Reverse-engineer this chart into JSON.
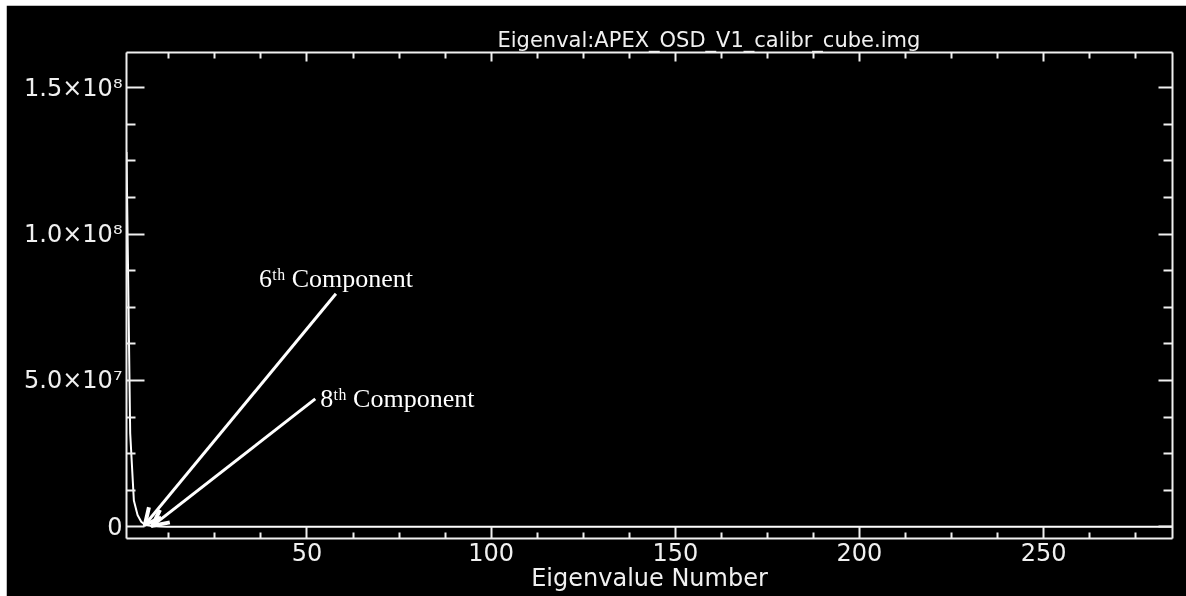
{
  "chart_data": {
    "type": "line",
    "title": "Eigenval:APEX_OSD_V1_calibr_cube.img",
    "xlabel": "Eigenvalue Number",
    "series": [
      {
        "color": "#ffffff",
        "x": [
          1,
          2,
          3,
          4,
          5,
          6,
          7,
          8,
          9,
          10,
          12,
          15,
          20,
          50,
          100,
          150,
          200,
          250,
          285
        ],
        "values": [
          128000000,
          32000000,
          9000000,
          4000000,
          1700000,
          700000,
          400000,
          300000,
          200000,
          100000,
          0,
          0,
          0,
          0,
          0,
          0,
          0,
          0,
          0
        ]
      }
    ],
    "xlim": [
      1,
      285
    ],
    "ylim": [
      -4000000,
      162000000
    ],
    "xticks": [
      {
        "value": 12.5,
        "label": null
      },
      {
        "value": 25,
        "label": null
      },
      {
        "value": 37.5,
        "label": null
      },
      50,
      {
        "value": 62.5,
        "label": null
      },
      {
        "value": 75,
        "label": null
      },
      {
        "value": 87.5,
        "label": null
      },
      100,
      {
        "value": 112.5,
        "label": null
      },
      {
        "value": 125,
        "label": null
      },
      {
        "value": 137.5,
        "label": null
      },
      150,
      {
        "value": 162.5,
        "label": null
      },
      {
        "value": 175,
        "label": null
      },
      {
        "value": 187.5,
        "label": null
      },
      200,
      {
        "value": 212.5,
        "label": null
      },
      {
        "value": 225,
        "label": null
      },
      {
        "value": 237.5,
        "label": null
      },
      250,
      {
        "value": 262.5,
        "label": null
      },
      {
        "value": 275,
        "label": null
      }
    ],
    "yticks": [
      0,
      {
        "value": 12500000,
        "label": null
      },
      {
        "value": 25000000,
        "label": null
      },
      {
        "value": 37500000,
        "label": null
      },
      {
        "value": 50000000,
        "label": "5.0×10⁷"
      },
      {
        "value": 62500000,
        "label": null
      },
      {
        "value": 75000000,
        "label": null
      },
      {
        "value": 87500000,
        "label": null
      },
      {
        "value": 100000000,
        "label": "1.0×10⁸"
      },
      {
        "value": 112500000,
        "label": null
      },
      {
        "value": 125000000,
        "label": null
      },
      {
        "value": 137500000,
        "label": null
      },
      {
        "value": 150000000,
        "label": "1.5×10⁸"
      }
    ],
    "annotations": [
      {
        "text": "6ᵗʰ Component",
        "x": 6,
        "y": 700000
      },
      {
        "text": "8ᵗʰ Component",
        "x": 8,
        "y": 300000
      }
    ]
  }
}
